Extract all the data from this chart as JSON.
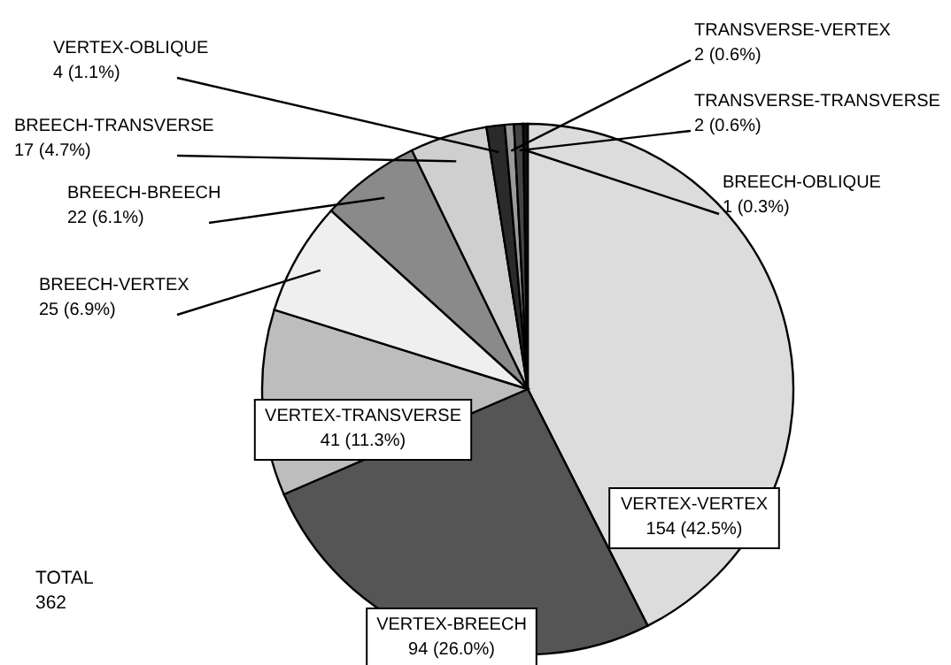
{
  "chart_data": {
    "type": "pie",
    "categories": [
      "VERTEX-VERTEX",
      "VERTEX-BREECH",
      "VERTEX-TRANSVERSE",
      "BREECH-VERTEX",
      "BREECH-BREECH",
      "BREECH-TRANSVERSE",
      "VERTEX-OBLIQUE",
      "TRANSVERSE-VERTEX",
      "TRANSVERSE-TRANSVERSE",
      "BREECH-OBLIQUE"
    ],
    "values": [
      154,
      94,
      41,
      25,
      22,
      17,
      4,
      2,
      2,
      1
    ],
    "value_labels": [
      "154 (42.5%)",
      "94 (26.0%)",
      "41 (11.3%)",
      "25 (6.9%)",
      "22 (6.1%)",
      "17 (4.7%)",
      "4 (1.1%)",
      "2 (0.6%)",
      "2 (0.6%)",
      "1 (0.3%)"
    ],
    "colors": [
      "#dcdcdc",
      "#555555",
      "#bdbdbd",
      "#efefef",
      "#8a8a8a",
      "#cfcfcf",
      "#2a2a2a",
      "#9a9a9a",
      "#444444",
      "#111111"
    ],
    "annotations": [
      "TOTAL\n362"
    ]
  }
}
